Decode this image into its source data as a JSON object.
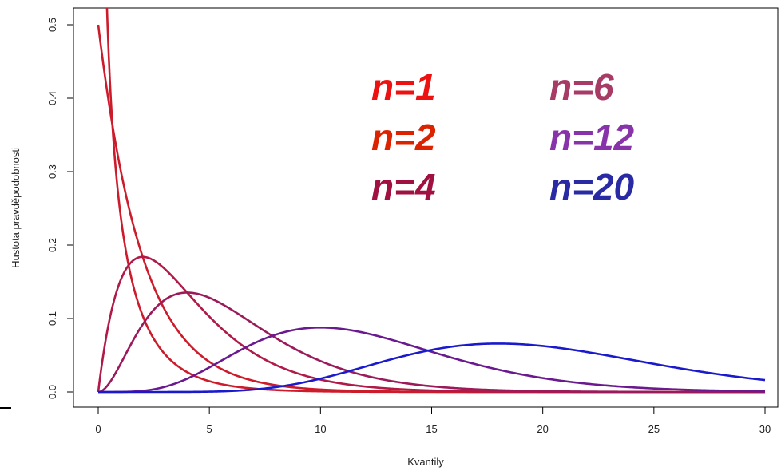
{
  "chart_data": {
    "type": "line",
    "title": "",
    "xlabel": "Kvantily",
    "ylabel": "Hustota pravděpodobnosti",
    "xlim": [
      0,
      30
    ],
    "ylim": [
      0,
      0.5
    ],
    "xticks": [
      0,
      5,
      10,
      15,
      20,
      25,
      30
    ],
    "yticks": [
      0.0,
      0.1,
      0.2,
      0.3,
      0.4,
      0.5
    ],
    "xtick_labels": [
      "0",
      "5",
      "10",
      "15",
      "20",
      "25",
      "30"
    ],
    "ytick_labels": [
      "0.0",
      "0.1",
      "0.2",
      "0.3",
      "0.4",
      "0.5"
    ],
    "grid": false,
    "legend_placement": "top-center",
    "distribution": "chi-squared density",
    "series": [
      {
        "name": "n=1",
        "df": 1,
        "color": "#ee1111"
      },
      {
        "name": "n=2",
        "df": 2,
        "color": "#dd2200"
      },
      {
        "name": "n=4",
        "df": 4,
        "color": "#a01040"
      },
      {
        "name": "n=6",
        "df": 6,
        "color": "#a83a66"
      },
      {
        "name": "n=12",
        "df": 12,
        "color": "#8833aa"
      },
      {
        "name": "n=20",
        "df": 20,
        "color": "#2a2aa5"
      }
    ],
    "line_colors": [
      "#cc1c2c",
      "#cc1c2c",
      "#b01a48",
      "#9a1a5a",
      "#6a1a8e",
      "#1a1acc"
    ]
  }
}
